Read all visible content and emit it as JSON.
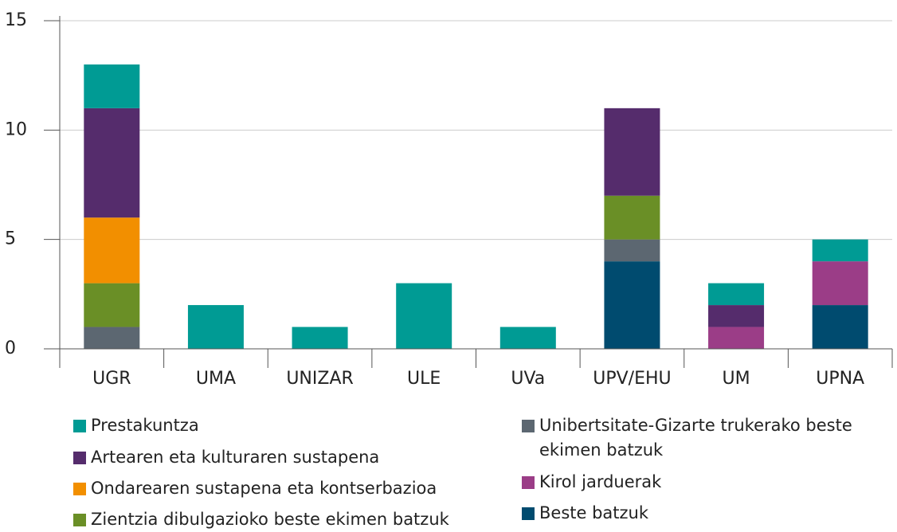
{
  "chart_data": {
    "type": "stacked_bar",
    "categories": [
      "UGR",
      "UMA",
      "UNIZAR",
      "ULE",
      "UVa",
      "UPV/EHU",
      "UM",
      "UPNA"
    ],
    "series": [
      {
        "name": "Beste batzuk",
        "color": "#004b6f",
        "values": [
          0,
          0,
          0,
          0,
          0,
          4,
          0,
          2
        ]
      },
      {
        "name": "Kirol jarduerak",
        "color": "#9b3d87",
        "values": [
          0,
          0,
          0,
          0,
          0,
          0,
          1,
          2
        ]
      },
      {
        "name": "Unibertsitate-Gizarte trukerako beste ekimen batzuk",
        "color": "#5c6771",
        "values": [
          1,
          0,
          0,
          0,
          0,
          1,
          0,
          0
        ]
      },
      {
        "name": "Zientzia dibulgazioko beste ekimen batzuk",
        "color": "#6a8f26",
        "values": [
          2,
          0,
          0,
          0,
          0,
          2,
          0,
          0
        ]
      },
      {
        "name": "Ondarearen sustapena eta kontserbazioa",
        "color": "#f28f00",
        "values": [
          3,
          0,
          0,
          0,
          0,
          0,
          0,
          0
        ]
      },
      {
        "name": "Artearen eta kulturaren sustapena",
        "color": "#552c6c",
        "values": [
          5,
          0,
          0,
          0,
          0,
          4,
          1,
          0
        ]
      },
      {
        "name": "Prestakuntza",
        "color": "#009b94",
        "values": [
          2,
          2,
          1,
          3,
          1,
          0,
          1,
          1
        ]
      }
    ],
    "legend_order": [
      6,
      5,
      4,
      3,
      2,
      1,
      0
    ],
    "ylim": [
      0,
      15
    ],
    "yticks": [
      0,
      5,
      10,
      15
    ],
    "grid": true
  }
}
